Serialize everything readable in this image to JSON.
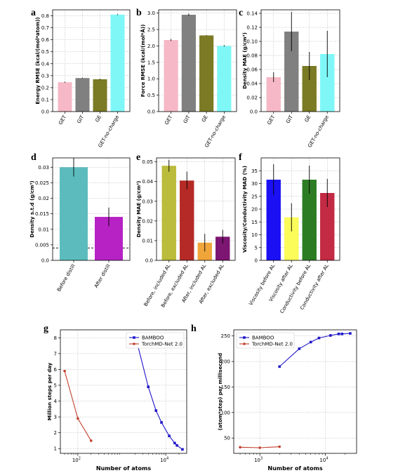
{
  "chart_data": [
    {
      "id": "a",
      "panel": "a",
      "type": "bar",
      "categories": [
        "GET",
        "GIT",
        "GE",
        "GET-no-charge"
      ],
      "values": [
        0.245,
        0.28,
        0.27,
        0.81
      ],
      "errors": [
        0.004,
        0.003,
        0.004,
        0.004
      ],
      "colors": [
        "#f6b8c6",
        "#808080",
        "#7b7a25",
        "#7ff7f7"
      ],
      "ylabel": "Energy RMSE (kcal/(mol*atom))",
      "ylim": [
        0,
        0.85
      ],
      "yticks": [
        0.0,
        0.1,
        0.2,
        0.3,
        0.4,
        0.5,
        0.6,
        0.7,
        0.8
      ],
      "ytick_labels": [
        "0.0",
        "0.1",
        "0.2",
        "0.3",
        "0.4",
        "0.5",
        "0.6",
        "0.7",
        "0.8"
      ],
      "grid": true
    },
    {
      "id": "b",
      "panel": "b",
      "type": "bar",
      "categories": [
        "GET",
        "GIT",
        "GE",
        "GET-no-charge"
      ],
      "values": [
        2.18,
        2.95,
        2.32,
        2.0
      ],
      "errors": [
        0.03,
        0.03,
        0.01,
        0.02
      ],
      "colors": [
        "#f6b8c6",
        "#808080",
        "#7b7a25",
        "#7ff7f7"
      ],
      "ylabel": "Force RMSE (kcal/(mol*Å))",
      "ylim": [
        0,
        3.1
      ],
      "yticks": [
        0.0,
        0.5,
        1.0,
        1.5,
        2.0,
        2.5,
        3.0
      ],
      "ytick_labels": [
        "0.0",
        "0.5",
        "1.0",
        "1.5",
        "2.0",
        "2.5",
        "3.0"
      ],
      "grid": true
    },
    {
      "id": "c",
      "panel": "c",
      "type": "bar",
      "categories": [
        "GET",
        "GIT",
        "GE",
        "GET-no-charge"
      ],
      "values": [
        0.049,
        0.114,
        0.065,
        0.082
      ],
      "errors": [
        0.007,
        0.028,
        0.02,
        0.033
      ],
      "colors": [
        "#f6b8c6",
        "#808080",
        "#7b7a25",
        "#7ff7f7"
      ],
      "ylabel": "Density MAE (g/cm³)",
      "ylim": [
        0,
        0.145
      ],
      "yticks": [
        0.0,
        0.02,
        0.04,
        0.06,
        0.08,
        0.1,
        0.12,
        0.14
      ],
      "ytick_labels": [
        "0.0",
        "0.02",
        "0.04",
        "0.06",
        "0.08",
        "0.10",
        "0.12",
        "0.14"
      ],
      "grid": true
    },
    {
      "id": "d",
      "panel": "d",
      "type": "bar",
      "categories": [
        "Before distill",
        "After distill"
      ],
      "values": [
        0.03,
        0.014
      ],
      "errors": [
        0.003,
        0.003
      ],
      "colors": [
        "#5cbcbd",
        "#b622c4"
      ],
      "ylabel": "Density s.t.d (g/cm³)",
      "ylim": [
        0,
        0.033
      ],
      "yticks": [
        0.0,
        0.005,
        0.01,
        0.015,
        0.02,
        0.025,
        0.03
      ],
      "ytick_labels": [
        "0.0",
        "0.005",
        "0.01",
        "0.015",
        "0.02",
        "0.025",
        "0.03"
      ],
      "hline": 0.004,
      "grid": true
    },
    {
      "id": "e",
      "panel": "e",
      "type": "bar",
      "categories": [
        "Before, included AL",
        "Before, excluded AL",
        "After, included AL",
        "After, excluded AL"
      ],
      "values": [
        0.048,
        0.0405,
        0.009,
        0.012
      ],
      "errors": [
        0.003,
        0.0045,
        0.0045,
        0.0035
      ],
      "colors": [
        "#bbbb3c",
        "#b52a26",
        "#f0a53b",
        "#7d1572"
      ],
      "ylabel": "Density MAE (g/cm³)",
      "ylim": [
        0,
        0.052
      ],
      "yticks": [
        0.0,
        0.01,
        0.02,
        0.03,
        0.04,
        0.05
      ],
      "ytick_labels": [
        "0.0",
        "0.01",
        "0.02",
        "0.03",
        "0.04",
        "0.05"
      ],
      "grid": true
    },
    {
      "id": "f",
      "panel": "f",
      "type": "bar",
      "categories": [
        "Viscosity before AL",
        "Viscosity after AL",
        "Conductivity before AL",
        "Conductivity after AL"
      ],
      "values": [
        31.5,
        16.8,
        31.5,
        26.3
      ],
      "errors": [
        6.0,
        5.5,
        5.5,
        5.5
      ],
      "colors": [
        "#1b10f4",
        "#fbfb59",
        "#2c7c23",
        "#c32a44"
      ],
      "ylabel": "Viscosity/Conductivity MAD (%)",
      "ylim": [
        0,
        40
      ],
      "yticks": [
        0,
        5,
        10,
        15,
        20,
        25,
        30,
        35
      ],
      "ytick_labels": [
        "0",
        "5",
        "10",
        "15",
        "20",
        "25",
        "30",
        "35"
      ],
      "grid": true
    },
    {
      "id": "g",
      "panel": "g",
      "type": "line",
      "xlabel": "Number of atoms",
      "ylabel": "Million steps per day",
      "xscale": "log",
      "xlim": [
        40,
        30000
      ],
      "ylim": [
        0.7,
        8.5
      ],
      "yticks": [
        1,
        2,
        3,
        4,
        5,
        6,
        7,
        8
      ],
      "ytick_labels": [
        "1",
        "2",
        "3",
        "4",
        "5",
        "6",
        "7",
        "8"
      ],
      "xticks": [
        100,
        10000
      ],
      "xtick_labels": [
        "10",
        "10"
      ],
      "xtick_exponents": [
        "2",
        "4"
      ],
      "legend": "top-right",
      "series": [
        {
          "name": "BAMBOO",
          "color": "#1f17c9",
          "marker": "square",
          "x": [
            2000,
            4000,
            6000,
            8000,
            12000,
            16000,
            18000,
            24000
          ],
          "y": [
            8.2,
            4.9,
            3.4,
            2.65,
            1.8,
            1.35,
            1.2,
            0.95
          ]
        },
        {
          "name": "TorchMD-Net 2.0",
          "color": "#c2402e",
          "marker": "circle",
          "x": [
            50,
            100,
            200
          ],
          "y": [
            5.9,
            2.9,
            1.5
          ]
        }
      ],
      "grid": true
    },
    {
      "id": "h",
      "panel": "h",
      "type": "line",
      "xlabel": "Number of atoms",
      "ylabel": "(atom*step) per millisecond",
      "xscale": "log",
      "xlim": [
        400,
        30000
      ],
      "ylim": [
        20,
        262
      ],
      "yticks": [
        50,
        100,
        150,
        200,
        250
      ],
      "ytick_labels": [
        "50",
        "100",
        "150",
        "200",
        "250"
      ],
      "xticks": [
        1000,
        10000
      ],
      "xtick_labels": [
        "10",
        "10"
      ],
      "xtick_exponents": [
        "3",
        "4"
      ],
      "legend": "top-left",
      "series": [
        {
          "name": "BAMBOO",
          "color": "#1f17c9",
          "marker": "square",
          "x": [
            2000,
            4000,
            6000,
            8000,
            12000,
            16000,
            18000,
            24000
          ],
          "y": [
            190,
            225,
            238,
            246,
            251,
            254,
            254,
            255
          ]
        },
        {
          "name": "TorchMD-Net 2.0",
          "color": "#c2402e",
          "marker": "circle",
          "x": [
            500,
            1000,
            2000
          ],
          "y": [
            32,
            31,
            33
          ]
        }
      ],
      "grid": true
    }
  ]
}
